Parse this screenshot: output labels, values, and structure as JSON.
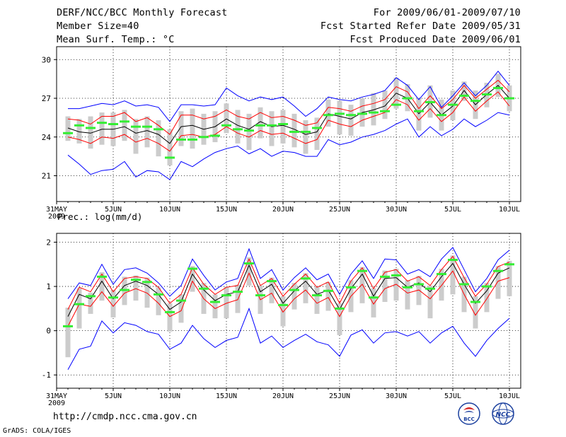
{
  "header": {
    "title": "DERF/NCC/BCC Monthly Forecast",
    "member_size": "Member Size=40",
    "variable": "Mean Surf. Temp.: °C",
    "period": "For 2009/06/01-2009/07/10",
    "fcst_started": "Fcst Started Refer Date 2009/05/31",
    "fcst_produced": "Fcst Produced Date 2009/06/01"
  },
  "footer": {
    "url": "http://cmdp.ncc.cma.gov.cn",
    "grads": "GrADS: COLA/IGES",
    "logo_left": "BCC",
    "logo_right": "NCC"
  },
  "colors": {
    "mean": "#000000",
    "spread": "#ff0000",
    "extreme": "#0000ff",
    "climatology": "#33ee33",
    "box": "#cccccc",
    "grid": "#000000"
  },
  "chart_data": [
    {
      "type": "line",
      "title": "Mean Surf. Temp.: °C",
      "x_tick_labels": [
        "31MAY",
        "5JUN",
        "10JUN",
        "15JUN",
        "20JUN",
        "25JUN",
        "30JUN",
        "5JUL",
        "10JUL"
      ],
      "x_year_label": "2009",
      "x_tick_days": [
        0,
        5,
        10,
        15,
        20,
        25,
        30,
        35,
        40
      ],
      "xlim": [
        0,
        41
      ],
      "ylim": [
        19,
        31
      ],
      "yticks": [
        21,
        24,
        27,
        30
      ],
      "days": [
        1,
        2,
        3,
        4,
        5,
        6,
        7,
        8,
        9,
        10,
        11,
        12,
        13,
        14,
        15,
        16,
        17,
        18,
        19,
        20,
        21,
        22,
        23,
        24,
        25,
        26,
        27,
        28,
        29,
        30,
        31,
        32,
        33,
        34,
        35,
        36,
        37,
        38,
        39,
        40
      ],
      "series": [
        {
          "name": "mean",
          "values": [
            24.7,
            24.4,
            24.3,
            24.6,
            24.6,
            24.8,
            24.3,
            24.5,
            24.2,
            23.5,
            24.8,
            24.9,
            24.6,
            24.8,
            25.4,
            24.9,
            24.6,
            25.2,
            24.8,
            24.9,
            24.6,
            24.2,
            24.4,
            25.8,
            25.6,
            25.4,
            25.9,
            26.1,
            26.4,
            27.4,
            27.0,
            25.8,
            26.7,
            25.7,
            26.4,
            27.6,
            26.5,
            27.3,
            28.0,
            27.0
          ]
        },
        {
          "name": "upper",
          "values": [
            25.4,
            25.3,
            25.0,
            25.6,
            25.6,
            25.9,
            25.2,
            25.5,
            24.9,
            24.2,
            25.7,
            25.7,
            25.4,
            25.6,
            26.1,
            25.6,
            25.4,
            25.9,
            25.5,
            25.6,
            25.3,
            24.9,
            25.1,
            26.3,
            26.2,
            26.0,
            26.4,
            26.6,
            26.9,
            27.9,
            27.5,
            26.2,
            27.2,
            26.2,
            26.9,
            28.0,
            27.0,
            27.7,
            28.4,
            27.5
          ]
        },
        {
          "name": "lower",
          "values": [
            24.0,
            23.8,
            23.5,
            24.0,
            23.9,
            24.2,
            23.6,
            23.9,
            23.5,
            22.9,
            24.1,
            24.2,
            24.0,
            24.2,
            24.8,
            24.3,
            24.0,
            24.5,
            24.2,
            24.3,
            23.9,
            23.5,
            23.8,
            25.3,
            25.0,
            24.8,
            25.3,
            25.6,
            25.9,
            26.9,
            26.5,
            25.3,
            26.2,
            25.2,
            25.9,
            27.1,
            26.0,
            26.8,
            27.5,
            26.4
          ]
        },
        {
          "name": "max",
          "values": [
            26.2,
            26.2,
            26.4,
            26.6,
            26.5,
            26.8,
            26.4,
            26.5,
            26.3,
            25.2,
            26.5,
            26.5,
            26.4,
            26.5,
            27.8,
            27.2,
            26.8,
            27.1,
            26.9,
            27.1,
            26.4,
            25.6,
            26.2,
            27.1,
            26.9,
            26.8,
            27.1,
            27.3,
            27.6,
            28.6,
            28.0,
            26.9,
            27.9,
            26.3,
            27.2,
            28.2,
            27.2,
            28.0,
            29.1,
            28.0
          ]
        },
        {
          "name": "min",
          "values": [
            22.6,
            21.9,
            21.1,
            21.4,
            21.5,
            22.1,
            20.9,
            21.4,
            21.3,
            20.7,
            22.1,
            21.7,
            22.3,
            22.8,
            23.1,
            23.3,
            22.7,
            23.1,
            22.5,
            22.9,
            22.8,
            22.5,
            22.5,
            23.8,
            23.4,
            23.6,
            24.0,
            24.2,
            24.5,
            25.0,
            25.4,
            24.0,
            24.8,
            24.1,
            24.6,
            25.4,
            24.8,
            25.3,
            25.9,
            25.7
          ]
        },
        {
          "name": "climatology",
          "values": [
            24.3,
            24.9,
            24.7,
            25.1,
            25.0,
            25.2,
            24.8,
            24.8,
            24.6,
            22.4,
            23.8,
            23.8,
            24.0,
            24.1,
            24.9,
            24.6,
            24.5,
            24.9,
            24.9,
            25.0,
            24.4,
            24.4,
            24.7,
            25.7,
            25.8,
            25.7,
            25.8,
            25.9,
            26.0,
            26.5,
            27.0,
            26.0,
            26.7,
            25.7,
            26.5,
            27.2,
            26.8,
            27.3,
            27.8,
            27.0
          ]
        }
      ],
      "boxes": {
        "top": [
          25.6,
          25.4,
          25.6,
          25.9,
          25.9,
          26.1,
          25.4,
          25.6,
          25.3,
          24.6,
          26.0,
          26.2,
          25.8,
          26.0,
          26.6,
          26.1,
          25.8,
          26.3,
          26.0,
          26.1,
          25.8,
          25.3,
          25.5,
          26.9,
          26.8,
          26.5,
          27.0,
          27.4,
          27.6,
          28.6,
          28.1,
          27.0,
          28.0,
          26.9,
          27.6,
          28.3,
          27.6,
          28.2,
          28.9,
          28.0
        ],
        "bottom": [
          23.7,
          23.5,
          23.1,
          23.4,
          23.3,
          23.7,
          22.7,
          23.2,
          22.5,
          21.8,
          23.3,
          23.1,
          23.4,
          23.6,
          24.3,
          23.5,
          23.0,
          23.9,
          23.3,
          23.5,
          23.2,
          22.7,
          23.0,
          24.8,
          24.2,
          24.1,
          24.8,
          24.9,
          25.4,
          26.2,
          26.0,
          24.5,
          25.5,
          24.5,
          25.3,
          26.8,
          25.4,
          26.3,
          27.1,
          26.0
        ]
      }
    },
    {
      "type": "line",
      "title": "Prec.: log(mm/d)",
      "x_tick_labels": [
        "31MAY",
        "5JUN",
        "10JUN",
        "15JUN",
        "20JUN",
        "25JUN",
        "30JUN",
        "5JUL",
        "10JUL"
      ],
      "x_year_label": "2009",
      "x_tick_days": [
        0,
        5,
        10,
        15,
        20,
        25,
        30,
        35,
        40
      ],
      "xlim": [
        0,
        41
      ],
      "ylim": [
        -1.3,
        2.2
      ],
      "yticks": [
        -1,
        0,
        1,
        2
      ],
      "days": [
        1,
        2,
        3,
        4,
        5,
        6,
        7,
        8,
        9,
        10,
        11,
        12,
        13,
        14,
        15,
        16,
        17,
        18,
        19,
        20,
        21,
        22,
        23,
        24,
        25,
        26,
        27,
        28,
        29,
        30,
        31,
        32,
        33,
        34,
        35,
        36,
        37,
        38,
        39,
        40
      ],
      "series": [
        {
          "name": "mean",
          "values": [
            0.32,
            0.82,
            0.72,
            1.12,
            0.72,
            1.02,
            1.12,
            1.02,
            0.82,
            0.48,
            0.65,
            1.28,
            0.92,
            0.68,
            0.82,
            0.88,
            1.48,
            0.88,
            1.05,
            0.62,
            0.9,
            1.12,
            0.82,
            0.92,
            0.48,
            0.95,
            1.28,
            0.78,
            1.18,
            1.2,
            0.98,
            1.08,
            0.88,
            1.22,
            1.52,
            1.05,
            0.62,
            0.9,
            1.3,
            1.42
          ]
        },
        {
          "name": "upper",
          "values": [
            0.48,
            0.98,
            0.88,
            1.28,
            0.88,
            1.18,
            1.22,
            1.18,
            0.98,
            0.62,
            0.82,
            1.42,
            1.05,
            0.82,
            0.98,
            1.02,
            1.62,
            1.02,
            1.18,
            0.78,
            1.05,
            1.28,
            0.98,
            1.1,
            0.62,
            1.12,
            1.42,
            0.95,
            1.32,
            1.38,
            1.12,
            1.22,
            1.02,
            1.38,
            1.68,
            1.2,
            0.78,
            1.05,
            1.45,
            1.55
          ]
        },
        {
          "name": "lower",
          "values": [
            0.1,
            0.6,
            0.55,
            0.88,
            0.55,
            0.85,
            0.95,
            0.85,
            0.62,
            0.32,
            0.45,
            1.12,
            0.72,
            0.5,
            0.62,
            0.7,
            1.3,
            0.7,
            0.85,
            0.42,
            0.72,
            0.92,
            0.62,
            0.75,
            0.32,
            0.78,
            1.05,
            0.6,
            0.95,
            1.05,
            0.85,
            0.92,
            0.72,
            1.02,
            1.35,
            0.82,
            0.35,
            0.72,
            1.12,
            1.2
          ]
        },
        {
          "name": "max",
          "values": [
            0.72,
            1.08,
            1.02,
            1.5,
            1.05,
            1.38,
            1.42,
            1.3,
            1.08,
            0.78,
            1.02,
            1.62,
            1.25,
            0.92,
            1.1,
            1.18,
            1.85,
            1.18,
            1.38,
            0.92,
            1.2,
            1.42,
            1.15,
            1.28,
            0.82,
            1.28,
            1.58,
            1.18,
            1.62,
            1.6,
            1.28,
            1.38,
            1.22,
            1.62,
            1.88,
            1.38,
            0.88,
            1.18,
            1.6,
            1.82
          ]
        },
        {
          "name": "min",
          "values": [
            -0.88,
            -0.42,
            -0.35,
            0.22,
            -0.05,
            0.18,
            0.12,
            -0.02,
            -0.08,
            -0.42,
            -0.28,
            0.12,
            -0.18,
            -0.38,
            -0.22,
            -0.15,
            0.5,
            -0.28,
            -0.12,
            -0.38,
            -0.22,
            -0.08,
            -0.25,
            -0.32,
            -0.58,
            -0.1,
            0.02,
            -0.28,
            -0.05,
            -0.02,
            -0.12,
            -0.02,
            -0.28,
            -0.05,
            0.1,
            -0.28,
            -0.58,
            -0.22,
            0.05,
            0.28
          ]
        },
        {
          "name": "climatology",
          "values": [
            0.1,
            0.6,
            0.78,
            1.22,
            0.75,
            0.92,
            1.15,
            1.1,
            0.82,
            0.42,
            0.68,
            1.4,
            0.95,
            0.65,
            0.8,
            0.88,
            1.52,
            0.8,
            1.12,
            0.58,
            0.92,
            1.18,
            0.8,
            0.9,
            0.5,
            0.98,
            1.35,
            0.75,
            1.22,
            1.25,
            0.98,
            1.05,
            0.95,
            1.28,
            1.6,
            1.05,
            0.65,
            1.0,
            1.35,
            1.5
          ]
        }
      ],
      "boxes": {
        "top": [
          0.52,
          0.96,
          0.86,
          1.32,
          0.92,
          1.22,
          1.25,
          1.2,
          0.98,
          0.62,
          0.82,
          1.46,
          1.08,
          0.82,
          1.0,
          1.04,
          1.66,
          1.02,
          1.2,
          0.78,
          1.08,
          1.3,
          1.0,
          1.1,
          0.62,
          1.14,
          1.44,
          0.96,
          1.36,
          1.4,
          1.14,
          1.24,
          1.02,
          1.4,
          1.7,
          1.22,
          0.78,
          1.08,
          1.46,
          1.58
        ],
        "bottom": [
          -0.6,
          0.05,
          0.38,
          0.68,
          0.3,
          0.58,
          0.68,
          0.52,
          0.35,
          -0.02,
          0.18,
          0.88,
          0.38,
          0.28,
          0.28,
          0.4,
          1.02,
          0.38,
          0.62,
          0.1,
          0.48,
          0.62,
          0.38,
          0.45,
          -0.1,
          0.42,
          0.62,
          0.3,
          0.65,
          0.68,
          0.48,
          0.58,
          0.28,
          0.68,
          0.82,
          0.42,
          0.05,
          0.42,
          0.72,
          0.78
        ]
      }
    }
  ]
}
